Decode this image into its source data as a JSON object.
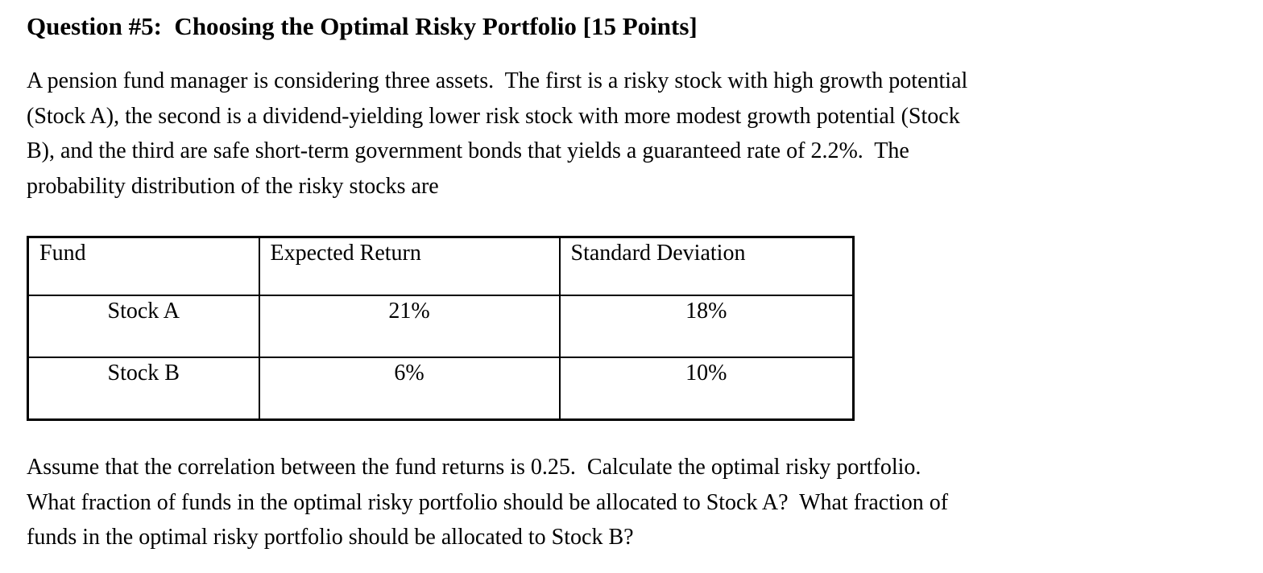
{
  "page": {
    "background_color": "#ffffff",
    "text_color": "#000000",
    "border_color": "#000000"
  },
  "document": {
    "title": "Question #5:  Choosing the Optimal Risky Portfolio [15 Points]",
    "intro": "A pension fund manager is considering three assets.  The first is a risky stock with high growth potential\n(Stock A), the second is a dividend-yielding lower risk stock with more modest growth potential (Stock\nB), and the third are safe short-term government bonds that yields a guaranteed rate of 2.2%.  The\nprobability distribution of the risky stocks are",
    "table": {
      "headers": [
        "Fund",
        "Expected Return",
        "Standard Deviation"
      ],
      "rows": [
        {
          "fund": "Stock A",
          "expected_return": "21%",
          "standard_deviation": "18%"
        },
        {
          "fund": "Stock B",
          "expected_return": "6%",
          "standard_deviation": "10%"
        }
      ]
    },
    "closing": "Assume that the correlation between the fund returns is 0.25.  Calculate the optimal risky portfolio.\nWhat fraction of funds in the optimal risky portfolio should be allocated to Stock A?  What fraction of\nfunds in the optimal risky portfolio should be allocated to Stock B?",
    "values": {
      "risk_free_rate": "2.2%",
      "correlation": "0.25",
      "points": "15"
    }
  }
}
